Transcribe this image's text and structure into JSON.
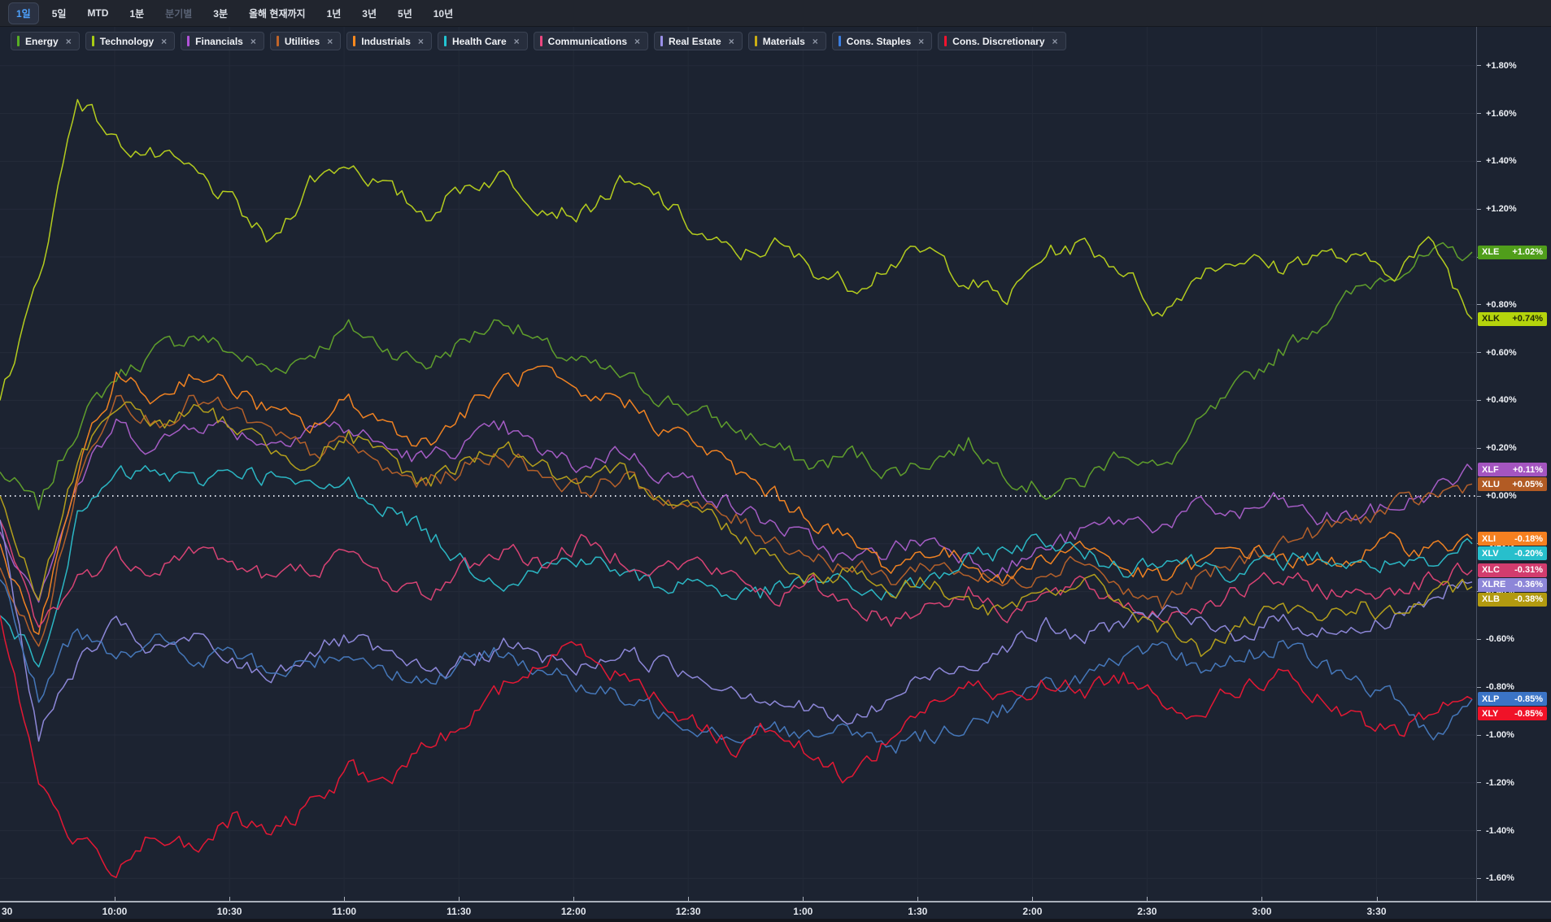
{
  "toolbar": {
    "buttons": [
      {
        "label": "1일",
        "state": "active"
      },
      {
        "label": "5일"
      },
      {
        "label": "MTD"
      },
      {
        "label": "1분"
      },
      {
        "label": "분기별",
        "state": "disabled"
      },
      {
        "label": "3분"
      },
      {
        "label": "올해 현재까지"
      },
      {
        "label": "1년"
      },
      {
        "label": "3년"
      },
      {
        "label": "5년"
      },
      {
        "label": "10년"
      }
    ]
  },
  "chart_data": {
    "type": "line",
    "unit": "percent_change_intraday",
    "ylim": [
      -1.69,
      1.96
    ],
    "grid": true,
    "zero_line_label": "+0.00%",
    "x_times": [
      "09:30",
      "09:40",
      "09:50",
      "10:00",
      "10:10",
      "10:20",
      "10:30",
      "10:40",
      "10:50",
      "11:00",
      "11:10",
      "11:20",
      "11:30",
      "11:40",
      "11:50",
      "12:00",
      "12:10",
      "12:20",
      "12:30",
      "12:40",
      "12:50",
      "13:00",
      "13:10",
      "13:20",
      "13:30",
      "13:40",
      "13:50",
      "14:00",
      "14:10",
      "14:20",
      "14:30",
      "14:40",
      "14:50",
      "15:00",
      "15:10",
      "15:20",
      "15:30",
      "15:40",
      "15:50"
    ],
    "x_axis_labels": [
      {
        "text": "30",
        "min": 0
      },
      {
        "text": "10:00",
        "min": 30
      },
      {
        "text": "10:30",
        "min": 60
      },
      {
        "text": "11:00",
        "min": 90
      },
      {
        "text": "11:30",
        "min": 120
      },
      {
        "text": "12:00",
        "min": 150
      },
      {
        "text": "12:30",
        "min": 180
      },
      {
        "text": "1:00",
        "min": 210
      },
      {
        "text": "1:30",
        "min": 240
      },
      {
        "text": "2:00",
        "min": 270
      },
      {
        "text": "2:30",
        "min": 300
      },
      {
        "text": "3:00",
        "min": 330
      },
      {
        "text": "3:30",
        "min": 360
      }
    ],
    "y_axis_labels": [
      {
        "text": "+1.80%",
        "v": 1.8
      },
      {
        "text": "+1.60%",
        "v": 1.6
      },
      {
        "text": "+1.40%",
        "v": 1.4
      },
      {
        "text": "+1.20%",
        "v": 1.2
      },
      {
        "text": "+1.00%",
        "v": 1.0
      },
      {
        "text": "+0.80%",
        "v": 0.8
      },
      {
        "text": "+0.60%",
        "v": 0.6
      },
      {
        "text": "+0.40%",
        "v": 0.4
      },
      {
        "text": "+0.20%",
        "v": 0.2
      },
      {
        "text": "+0.00%",
        "v": 0.0
      },
      {
        "text": "-0.20%",
        "v": -0.2
      },
      {
        "text": "-0.40%",
        "v": -0.4
      },
      {
        "text": "-0.60%",
        "v": -0.6
      },
      {
        "text": "-0.80%",
        "v": -0.8
      },
      {
        "text": "-1.00%",
        "v": -1.0
      },
      {
        "text": "-1.20%",
        "v": -1.2
      },
      {
        "text": "-1.40%",
        "v": -1.4
      },
      {
        "text": "-1.60%",
        "v": -1.6
      }
    ],
    "series": [
      {
        "chip_label": "Energy",
        "ticker": "XLE",
        "color": "#5f9e2c",
        "chip_color": "#57ae24",
        "badge_bg": "#509e1b",
        "badge_fg": "#ffffff",
        "change_label": "+1.02%",
        "change_value": 1.02,
        "values": [
          0.1,
          -0.05,
          0.3,
          0.5,
          0.6,
          0.68,
          0.6,
          0.52,
          0.6,
          0.7,
          0.62,
          0.55,
          0.65,
          0.75,
          0.62,
          0.55,
          0.5,
          0.42,
          0.35,
          0.28,
          0.2,
          0.12,
          0.18,
          0.1,
          0.15,
          0.22,
          0.1,
          0.02,
          0.06,
          0.2,
          0.1,
          0.3,
          0.45,
          0.6,
          0.72,
          0.85,
          0.95,
          1.0,
          1.02
        ]
      },
      {
        "chip_label": "Technology",
        "ticker": "XLK",
        "color": "#b4cc1e",
        "chip_color": "#a8cc14",
        "badge_bg": "#b5d40c",
        "badge_fg": "#222b06",
        "change_label": "+0.74%",
        "change_value": 0.74,
        "values": [
          0.4,
          0.9,
          1.68,
          1.48,
          1.42,
          1.35,
          1.22,
          1.05,
          1.32,
          1.4,
          1.28,
          1.18,
          1.3,
          1.34,
          1.22,
          1.18,
          1.3,
          1.25,
          1.1,
          1.0,
          1.05,
          0.95,
          0.88,
          0.98,
          1.02,
          0.9,
          0.82,
          1.02,
          1.05,
          0.95,
          0.75,
          0.95,
          1.0,
          0.95,
          1.02,
          0.98,
          0.95,
          1.06,
          0.74
        ]
      },
      {
        "chip_label": "Financials",
        "ticker": "XLF",
        "color": "#a45cc4",
        "chip_color": "#b052d8",
        "badge_bg": "#a455c0",
        "badge_fg": "#ffffff",
        "change_label": "+0.11%",
        "change_value": 0.11,
        "values": [
          -0.15,
          -0.4,
          0.05,
          0.3,
          0.2,
          0.32,
          0.28,
          0.22,
          0.3,
          0.28,
          0.2,
          0.15,
          0.22,
          0.28,
          0.18,
          0.12,
          0.2,
          0.1,
          0.05,
          -0.05,
          -0.12,
          -0.2,
          -0.28,
          -0.22,
          -0.18,
          -0.25,
          -0.3,
          -0.22,
          -0.15,
          -0.1,
          -0.12,
          -0.05,
          -0.08,
          -0.02,
          -0.1,
          -0.08,
          -0.05,
          0.02,
          0.11
        ]
      },
      {
        "chip_label": "Utilities",
        "ticker": "XLU",
        "color": "#b4602a",
        "chip_color": "#c06428",
        "badge_bg": "#b25b24",
        "badge_fg": "#ffffff",
        "change_label": "+0.05%",
        "change_value": 0.05,
        "values": [
          -0.3,
          -0.65,
          0.05,
          0.45,
          0.3,
          0.4,
          0.35,
          0.25,
          0.18,
          0.22,
          0.1,
          0.05,
          0.12,
          0.18,
          0.1,
          0.02,
          0.08,
          0.0,
          -0.05,
          -0.1,
          -0.18,
          -0.25,
          -0.3,
          -0.35,
          -0.28,
          -0.32,
          -0.38,
          -0.3,
          -0.25,
          -0.4,
          -0.45,
          -0.35,
          -0.28,
          -0.2,
          -0.15,
          -0.1,
          -0.05,
          0.0,
          0.05
        ]
      },
      {
        "chip_label": "Industrials",
        "ticker": "XLI",
        "color": "#f08222",
        "chip_color": "#ff8a1e",
        "badge_bg": "#f58020",
        "badge_fg": "#ffffff",
        "change_label": "-0.18%",
        "change_value": -0.18,
        "values": [
          -0.2,
          -0.6,
          0.1,
          0.5,
          0.4,
          0.52,
          0.45,
          0.35,
          0.28,
          0.4,
          0.3,
          0.22,
          0.35,
          0.48,
          0.52,
          0.38,
          0.42,
          0.3,
          0.22,
          0.1,
          0.0,
          -0.1,
          -0.2,
          -0.3,
          -0.22,
          -0.28,
          -0.35,
          -0.25,
          -0.2,
          -0.3,
          -0.35,
          -0.28,
          -0.22,
          -0.25,
          -0.3,
          -0.25,
          -0.2,
          -0.22,
          -0.18
        ]
      },
      {
        "chip_label": "Health Care",
        "ticker": "XLV",
        "color": "#2bb7c4",
        "chip_color": "#22c4d2",
        "badge_bg": "#27bfcc",
        "badge_fg": "#ffffff",
        "change_label": "-0.20%",
        "change_value": -0.2,
        "values": [
          -0.5,
          -0.7,
          -0.1,
          0.08,
          0.1,
          0.05,
          0.12,
          0.08,
          0.02,
          0.05,
          -0.05,
          -0.15,
          -0.28,
          -0.35,
          -0.3,
          -0.25,
          -0.32,
          -0.38,
          -0.35,
          -0.42,
          -0.4,
          -0.35,
          -0.38,
          -0.42,
          -0.35,
          -0.28,
          -0.22,
          -0.18,
          -0.25,
          -0.3,
          -0.25,
          -0.28,
          -0.32,
          -0.28,
          -0.25,
          -0.3,
          -0.28,
          -0.32,
          -0.2
        ]
      },
      {
        "chip_label": "Communications",
        "ticker": "XLC",
        "color": "#d84374",
        "chip_color": "#ec4680",
        "badge_bg": "#d23c6e",
        "badge_fg": "#ffffff",
        "change_label": "-0.31%",
        "change_value": -0.31,
        "values": [
          -0.1,
          -0.55,
          -0.35,
          -0.25,
          -0.3,
          -0.22,
          -0.28,
          -0.35,
          -0.3,
          -0.25,
          -0.35,
          -0.42,
          -0.3,
          -0.22,
          -0.28,
          -0.2,
          -0.25,
          -0.3,
          -0.28,
          -0.35,
          -0.42,
          -0.38,
          -0.45,
          -0.52,
          -0.45,
          -0.4,
          -0.48,
          -0.42,
          -0.38,
          -0.45,
          -0.5,
          -0.45,
          -0.4,
          -0.35,
          -0.38,
          -0.42,
          -0.38,
          -0.35,
          -0.31
        ]
      },
      {
        "chip_label": "Real Estate",
        "ticker": "XLRE",
        "color": "#8d87d8",
        "chip_color": "#9a90e8",
        "badge_bg": "#8d86d8",
        "badge_fg": "#ffffff",
        "change_label": "-0.36%",
        "change_value": -0.36,
        "values": [
          -0.1,
          -1.0,
          -0.7,
          -0.55,
          -0.65,
          -0.6,
          -0.7,
          -0.75,
          -0.65,
          -0.6,
          -0.68,
          -0.75,
          -0.7,
          -0.62,
          -0.68,
          -0.72,
          -0.65,
          -0.7,
          -0.75,
          -0.8,
          -0.85,
          -0.9,
          -0.95,
          -0.85,
          -0.75,
          -0.7,
          -0.62,
          -0.55,
          -0.6,
          -0.52,
          -0.48,
          -0.55,
          -0.58,
          -0.52,
          -0.55,
          -0.58,
          -0.5,
          -0.42,
          -0.36
        ]
      },
      {
        "chip_label": "Materials",
        "ticker": "XLB",
        "color": "#b29e1c",
        "chip_color": "#ccae14",
        "badge_bg": "#b29a10",
        "badge_fg": "#ffffff",
        "change_label": "-0.38%",
        "change_value": -0.38,
        "values": [
          0.0,
          -0.45,
          0.15,
          0.4,
          0.3,
          0.35,
          0.3,
          0.2,
          0.15,
          0.25,
          0.15,
          0.05,
          0.15,
          0.22,
          0.12,
          0.02,
          0.1,
          0.02,
          -0.05,
          -0.15,
          -0.25,
          -0.35,
          -0.3,
          -0.4,
          -0.35,
          -0.45,
          -0.5,
          -0.4,
          -0.35,
          -0.45,
          -0.55,
          -0.65,
          -0.55,
          -0.48,
          -0.52,
          -0.45,
          -0.5,
          -0.42,
          -0.38
        ]
      },
      {
        "chip_label": "Cons. Staples",
        "ticker": "XLP",
        "color": "#4577b9",
        "chip_color": "#3b7ee0",
        "badge_bg": "#3b74c6",
        "badge_fg": "#ffffff",
        "change_label": "-0.85%",
        "change_value": -0.849,
        "values": [
          -0.35,
          -0.85,
          -0.55,
          -0.65,
          -0.6,
          -0.7,
          -0.65,
          -0.75,
          -0.7,
          -0.65,
          -0.72,
          -0.78,
          -0.7,
          -0.65,
          -0.72,
          -0.8,
          -0.85,
          -0.9,
          -0.95,
          -1.0,
          -0.95,
          -1.02,
          -0.98,
          -1.05,
          -1.0,
          -0.95,
          -0.88,
          -0.8,
          -0.75,
          -0.7,
          -0.65,
          -0.72,
          -0.68,
          -0.62,
          -0.7,
          -0.78,
          -0.85,
          -1.0,
          -0.85
        ]
      },
      {
        "chip_label": "Cons. Discretionary",
        "ticker": "XLY",
        "color": "#e41834",
        "chip_color": "#f5132e",
        "badge_bg": "#f01228",
        "badge_fg": "#ffffff",
        "change_label": "-0.85%",
        "change_value": -0.851,
        "values": [
          -0.5,
          -1.2,
          -1.45,
          -1.55,
          -1.4,
          -1.5,
          -1.35,
          -1.42,
          -1.3,
          -1.15,
          -1.2,
          -1.05,
          -0.95,
          -0.8,
          -0.7,
          -0.62,
          -0.75,
          -0.85,
          -0.95,
          -1.05,
          -0.95,
          -1.1,
          -1.18,
          -1.0,
          -0.87,
          -0.8,
          -0.85,
          -0.78,
          -0.82,
          -0.75,
          -0.85,
          -0.9,
          -0.8,
          -0.75,
          -0.85,
          -0.95,
          -1.0,
          -0.9,
          -0.85
        ]
      }
    ]
  }
}
